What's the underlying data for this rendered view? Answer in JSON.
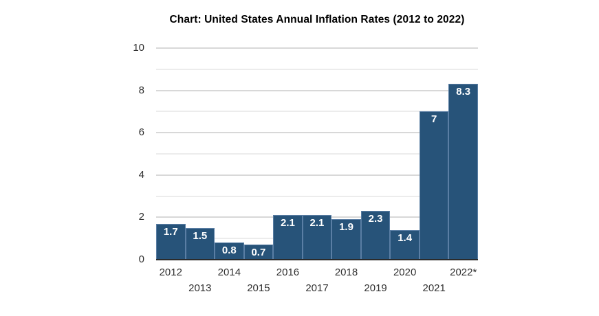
{
  "chart_data": {
    "type": "bar",
    "title": "Chart: United States Annual Inflation Rates (2012 to 2022)",
    "categories": [
      "2012",
      "2013",
      "2014",
      "2015",
      "2016",
      "2017",
      "2018",
      "2019",
      "2020",
      "2021",
      "2022*"
    ],
    "values": [
      1.7,
      1.5,
      0.8,
      0.7,
      2.1,
      2.1,
      1.9,
      2.3,
      1.4,
      7,
      8.3
    ],
    "value_labels": [
      "1.7",
      "1.5",
      "0.8",
      "0.7",
      "2.1",
      "2.1",
      "1.9",
      "2.3",
      "1.4",
      "7",
      "8.3"
    ],
    "xlabel": "",
    "ylabel": "",
    "ylim": [
      0,
      10
    ],
    "y_major_ticks": [
      0,
      2,
      4,
      6,
      8,
      10
    ],
    "y_minor_ticks": [
      1,
      3,
      5,
      7,
      9
    ],
    "grid": "on",
    "legend": "none",
    "x_label_layout": "staggered-two-rows",
    "colors": {
      "bar_fill": "#275379",
      "bar_border": "#5a7ea4",
      "value_label": "#ffffff",
      "major_grid": "#d8d8d8",
      "minor_grid": "#ececec",
      "baseline": "#2b2b2b",
      "axis_text": "#303030",
      "title_text": "#000000",
      "background": "#ffffff"
    }
  }
}
